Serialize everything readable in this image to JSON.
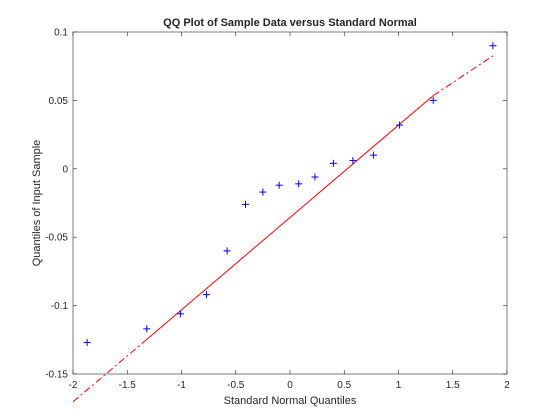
{
  "chart_data": {
    "type": "scatter",
    "title": "QQ Plot of Sample Data versus Standard Normal",
    "xlabel": "Standard Normal Quantiles",
    "ylabel": "Quantiles of Input Sample",
    "xlim": [
      -2,
      2
    ],
    "ylim": [
      -0.15,
      0.1
    ],
    "xticks": [
      -2,
      -1.5,
      -1,
      -0.5,
      0,
      0.5,
      1,
      1.5,
      2
    ],
    "xtick_labels": [
      "-2",
      "-1.5",
      "-1",
      "-0.5",
      "0",
      "0.5",
      "1",
      "1.5",
      "2"
    ],
    "yticks": [
      -0.15,
      -0.1,
      -0.05,
      0,
      0.05,
      0.1
    ],
    "ytick_labels": [
      "-0.15",
      "-0.1",
      "-0.05",
      "0",
      "0.05",
      "0.1"
    ],
    "grid": false,
    "series": [
      {
        "marker": "+",
        "color": "#0000ff",
        "x": [
          -1.87,
          -1.32,
          -1.01,
          -0.77,
          -0.58,
          -0.41,
          -0.25,
          -0.1,
          0.08,
          0.23,
          0.4,
          0.58,
          0.77,
          1.01,
          1.32,
          1.87
        ],
        "y": [
          -0.127,
          -0.117,
          -0.106,
          -0.092,
          -0.06,
          -0.026,
          -0.017,
          -0.012,
          -0.011,
          -0.006,
          0.004,
          0.006,
          0.01,
          0.032,
          0.05,
          0.09
        ]
      }
    ],
    "reference_line": {
      "color": "#ff0000",
      "solid_segment": [
        [
          -1.32,
          -0.1247
        ],
        [
          1.32,
          0.0535
        ]
      ],
      "dashdot_extensions": [
        [
          [
            -2.0,
            -0.1703
          ],
          [
            -1.32,
            -0.1247
          ]
        ],
        [
          [
            1.32,
            0.0535
          ],
          [
            1.87,
            0.0826
          ]
        ]
      ]
    }
  }
}
